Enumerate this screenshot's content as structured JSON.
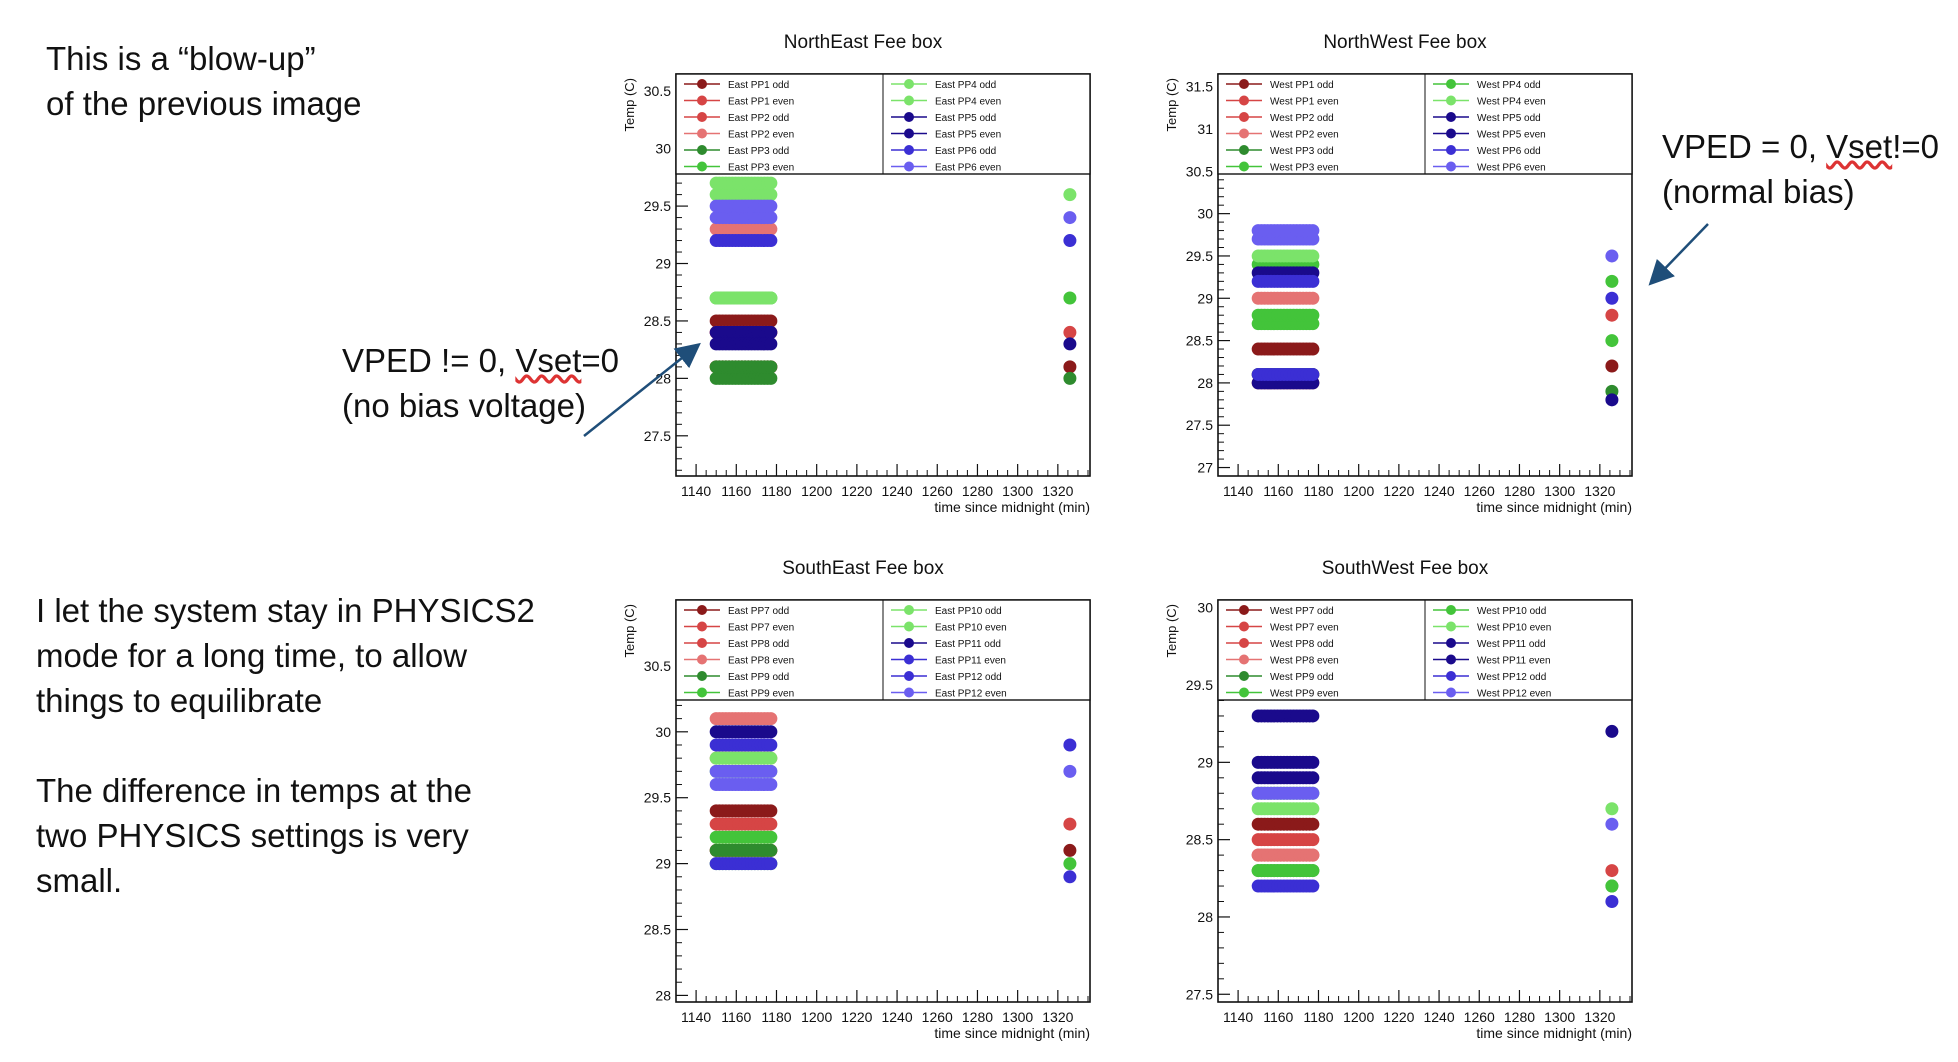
{
  "notes": {
    "blowup": [
      "This is a “blow-up”",
      "of the previous image"
    ],
    "nobias": {
      "line1_pre": "VPED != 0, ",
      "line1_word": "Vset",
      "line1_post": "=0",
      "line2": "(no bias voltage)"
    },
    "normal": {
      "line1_pre": "VPED = 0, ",
      "line1_word": "Vset",
      "line1_post": "!=0",
      "line2": "(normal bias)"
    },
    "physics": [
      "I let the system stay in PHYSICS2",
      "mode for a long time, to allow",
      "things to equilibrate"
    ],
    "difference": [
      "The difference in temps at the",
      "two PHYSICS settings is very",
      "small."
    ]
  },
  "colors": {
    "dark_red": "#8b1a1a",
    "red": "#d64545",
    "salmon": "#e57373",
    "dark_green": "#2e8b2e",
    "green": "#43c43a",
    "light_green": "#7be36a",
    "navy": "#1a0a8c",
    "blue": "#3b2fd4",
    "periwinkle": "#6a5ef0",
    "arrow": "#1f4e79"
  },
  "chart_data": [
    {
      "type": "scatter",
      "title": "NorthEast Fee box",
      "xlabel": "time since midnight (min)",
      "ylabel": "Temp (C)",
      "xlim": [
        1130,
        1336
      ],
      "ylim": [
        27.15,
        30.65
      ],
      "xticks": [
        1140,
        1160,
        1180,
        1200,
        1220,
        1240,
        1260,
        1280,
        1300,
        1320
      ],
      "yticks": [
        27.5,
        28,
        28.5,
        29,
        29.5,
        30,
        30.5
      ],
      "ytick_labels": [
        "27.5",
        "28",
        "28.5",
        "29",
        "29.5",
        "30",
        "30.5"
      ],
      "legend": {
        "left": [
          "East PP1 odd",
          "East PP1 even",
          "East PP2 odd",
          "East PP2 even",
          "East PP3 odd",
          "East PP3 even"
        ],
        "right": [
          "East PP4 odd",
          "East PP4 even",
          "East PP5 odd",
          "East PP5 even",
          "East PP6 odd",
          "East PP6 even"
        ]
      },
      "series": [
        {
          "name": "East PP1 odd",
          "color_key": "dark_red",
          "cluster": [
            28.1,
            28.5
          ],
          "later": 28.1
        },
        {
          "name": "East PP1 even",
          "color_key": "red",
          "cluster": [
            28.4
          ],
          "later": 28.4
        },
        {
          "name": "East PP2 odd",
          "color_key": "red",
          "cluster": [
            28.1,
            28.4
          ]
        },
        {
          "name": "East PP2 even",
          "color_key": "salmon",
          "cluster": [
            29.3
          ]
        },
        {
          "name": "East PP3 odd",
          "color_key": "dark_green",
          "cluster": [
            28.0,
            28.1
          ],
          "later": 28.0
        },
        {
          "name": "East PP3 even",
          "color_key": "green",
          "cluster": [
            28.7
          ],
          "later": 28.7
        },
        {
          "name": "East PP4 odd",
          "color_key": "light_green",
          "cluster": [
            29.6,
            29.7
          ],
          "later": 29.6
        },
        {
          "name": "East PP4 even",
          "color_key": "light_green",
          "cluster": [
            28.7
          ]
        },
        {
          "name": "East PP5 odd",
          "color_key": "navy",
          "cluster": [
            28.4
          ],
          "later": 28.3
        },
        {
          "name": "East PP5 even",
          "color_key": "navy",
          "cluster": [
            28.3
          ]
        },
        {
          "name": "East PP6 odd",
          "color_key": "blue",
          "cluster": [
            29.2
          ],
          "later": 29.2
        },
        {
          "name": "East PP6 even",
          "color_key": "periwinkle",
          "cluster": [
            29.4,
            29.5
          ],
          "later": 29.4
        }
      ]
    },
    {
      "type": "scatter",
      "title": "NorthWest Fee box",
      "xlabel": "time since midnight (min)",
      "ylabel": "Temp (C)",
      "xlim": [
        1130,
        1336
      ],
      "ylim": [
        26.9,
        31.65
      ],
      "xticks": [
        1140,
        1160,
        1180,
        1200,
        1220,
        1240,
        1260,
        1280,
        1300,
        1320
      ],
      "yticks": [
        27,
        27.5,
        28,
        28.5,
        29,
        29.5,
        30,
        30.5,
        31,
        31.5
      ],
      "ytick_labels": [
        "27",
        "27.5",
        "28",
        "28.5",
        "29",
        "29.5",
        "30",
        "30.5",
        "31",
        "31.5"
      ],
      "legend": {
        "left": [
          "West PP1 odd",
          "West PP1 even",
          "West PP2 odd",
          "West PP2 even",
          "West PP3 odd",
          "West PP3 even"
        ],
        "right": [
          "West PP4 odd",
          "West PP4 even",
          "West PP5 odd",
          "West PP5 even",
          "West PP6 odd",
          "West PP6 even"
        ]
      },
      "series": [
        {
          "name": "West PP1 odd",
          "color_key": "dark_red",
          "cluster": [
            28.4
          ],
          "later": 28.2
        },
        {
          "name": "West PP1 even",
          "color_key": "red",
          "cluster": [
            28.0
          ],
          "later": 28.8
        },
        {
          "name": "West PP2 odd",
          "color_key": "red",
          "cluster": [
            28.1
          ]
        },
        {
          "name": "West PP2 even",
          "color_key": "salmon",
          "cluster": [
            29.0
          ]
        },
        {
          "name": "West PP3 odd",
          "color_key": "dark_green",
          "cluster": [
            28.1
          ],
          "later": 27.9
        },
        {
          "name": "West PP3 even",
          "color_key": "green",
          "cluster": [
            28.7
          ],
          "later": 28.5
        },
        {
          "name": "West PP4 odd",
          "color_key": "green",
          "cluster": [
            29.4,
            28.8
          ],
          "later": 29.2
        },
        {
          "name": "West PP4 even",
          "color_key": "light_green",
          "cluster": [
            29.5
          ]
        },
        {
          "name": "West PP5 odd",
          "color_key": "navy",
          "cluster": [
            29.3
          ],
          "later": 27.8
        },
        {
          "name": "West PP5 even",
          "color_key": "navy",
          "cluster": [
            28.0
          ]
        },
        {
          "name": "West PP6 odd",
          "color_key": "blue",
          "cluster": [
            29.2,
            28.1
          ],
          "later": 29.0
        },
        {
          "name": "West PP6 even",
          "color_key": "periwinkle",
          "cluster": [
            29.7,
            29.8
          ],
          "later": 29.5
        }
      ]
    },
    {
      "type": "scatter",
      "title": "SouthEast Fee box",
      "xlabel": "time since midnight (min)",
      "ylabel": "Temp (C)",
      "xlim": [
        1130,
        1336
      ],
      "ylim": [
        27.95,
        31.0
      ],
      "xticks": [
        1140,
        1160,
        1180,
        1200,
        1220,
        1240,
        1260,
        1280,
        1300,
        1320
      ],
      "yticks": [
        28,
        28.5,
        29,
        29.5,
        30,
        30.5
      ],
      "ytick_labels": [
        "28",
        "28.5",
        "29",
        "29.5",
        "30",
        "30.5"
      ],
      "legend": {
        "left": [
          "East PP7 odd",
          "East PP7 even",
          "East PP8 odd",
          "East PP8 even",
          "East PP9 odd",
          "East PP9 even"
        ],
        "right": [
          "East PP10 odd",
          "East PP10 even",
          "East PP11 odd",
          "East PP11 even",
          "East PP12 odd",
          "East PP12 even"
        ]
      },
      "series": [
        {
          "name": "East PP7 odd",
          "color_key": "dark_red",
          "cluster": [
            29.4,
            29.1
          ],
          "later": 29.1
        },
        {
          "name": "East PP7 even",
          "color_key": "red",
          "cluster": [
            29.3
          ],
          "later": 29.3
        },
        {
          "name": "East PP8 odd",
          "color_key": "red",
          "cluster": [
            29.1
          ]
        },
        {
          "name": "East PP8 even",
          "color_key": "salmon",
          "cluster": [
            30.1,
            29.8
          ]
        },
        {
          "name": "East PP9 odd",
          "color_key": "dark_green",
          "cluster": [
            29.1
          ]
        },
        {
          "name": "East PP9 even",
          "color_key": "green",
          "cluster": [
            29.2,
            29.0
          ],
          "later": 29.0
        },
        {
          "name": "East PP10 odd",
          "color_key": "light_green",
          "cluster": [
            29.8
          ]
        },
        {
          "name": "East PP10 even",
          "color_key": "light_green",
          "cluster": [
            29.7
          ]
        },
        {
          "name": "East PP11 odd",
          "color_key": "navy",
          "cluster": [
            30.0
          ]
        },
        {
          "name": "East PP11 even",
          "color_key": "blue",
          "cluster": [
            29.9
          ],
          "later": 29.9
        },
        {
          "name": "East PP12 odd",
          "color_key": "blue",
          "cluster": [
            29.0
          ],
          "later": 28.9
        },
        {
          "name": "East PP12 even",
          "color_key": "periwinkle",
          "cluster": [
            29.7,
            29.6
          ],
          "later": 29.7
        }
      ]
    },
    {
      "type": "scatter",
      "title": "SouthWest Fee box",
      "xlabel": "time since midnight (min)",
      "ylabel": "Temp (C)",
      "xlim": [
        1130,
        1336
      ],
      "ylim": [
        27.45,
        30.05
      ],
      "xticks": [
        1140,
        1160,
        1180,
        1200,
        1220,
        1240,
        1260,
        1280,
        1300,
        1320
      ],
      "yticks": [
        27.5,
        28,
        28.5,
        29,
        29.5,
        30
      ],
      "ytick_labels": [
        "27.5",
        "28",
        "28.5",
        "29",
        "29.5",
        "30"
      ],
      "legend": {
        "left": [
          "West PP7 odd",
          "West PP7 even",
          "West PP8 odd",
          "West PP8 even",
          "West PP9 odd",
          "West PP9 even"
        ],
        "right": [
          "West PP10 odd",
          "West PP10 even",
          "West PP11 odd",
          "West PP11 even",
          "West PP12 odd",
          "West PP12 even"
        ]
      },
      "series": [
        {
          "name": "West PP7 odd",
          "color_key": "dark_red",
          "cluster": [
            28.6
          ]
        },
        {
          "name": "West PP7 even",
          "color_key": "red",
          "cluster": [
            28.5
          ],
          "later": 28.3
        },
        {
          "name": "West PP8 odd",
          "color_key": "red",
          "cluster": [
            28.4
          ]
        },
        {
          "name": "West PP8 even",
          "color_key": "salmon",
          "cluster": [
            28.4
          ]
        },
        {
          "name": "West PP9 odd",
          "color_key": "dark_green",
          "cluster": [
            28.3
          ],
          "later": 28.2
        },
        {
          "name": "West PP9 even",
          "color_key": "green",
          "cluster": [
            28.3
          ],
          "later": 28.2
        },
        {
          "name": "West PP10 odd",
          "color_key": "green",
          "cluster": [
            28.8
          ]
        },
        {
          "name": "West PP10 even",
          "color_key": "light_green",
          "cluster": [
            28.7
          ],
          "later": 28.7
        },
        {
          "name": "West PP11 odd",
          "color_key": "navy",
          "cluster": [
            29.3,
            29.0
          ],
          "later": 29.2
        },
        {
          "name": "West PP11 even",
          "color_key": "navy",
          "cluster": [
            28.9
          ]
        },
        {
          "name": "West PP12 odd",
          "color_key": "blue",
          "cluster": [
            28.2
          ],
          "later": 28.1
        },
        {
          "name": "West PP12 even",
          "color_key": "periwinkle",
          "cluster": [
            28.8
          ],
          "later": 28.6
        }
      ]
    }
  ]
}
